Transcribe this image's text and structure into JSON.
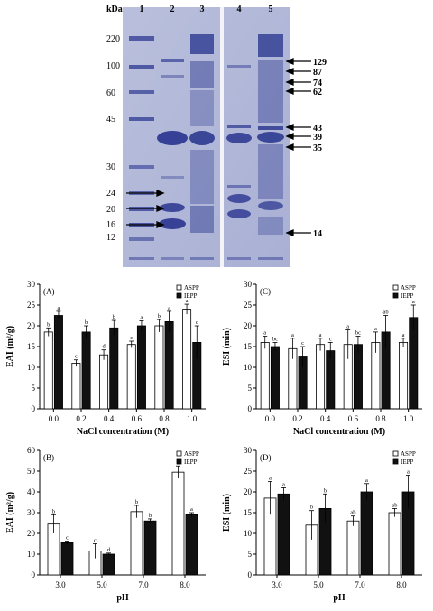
{
  "gel": {
    "unit_label": "kDa",
    "lanes": [
      "1",
      "2",
      "3",
      "4",
      "5"
    ],
    "marker_labels": [
      "220",
      "100",
      "60",
      "45",
      "30",
      "24",
      "20",
      "16",
      "12"
    ],
    "band_labels_right": [
      "129",
      "87",
      "74",
      "62",
      "43",
      "39",
      "35",
      "14"
    ]
  },
  "chart_data": [
    {
      "panel_label": "(A)",
      "type": "bar",
      "ylabel": "EAI (m²/g)",
      "xlabel": "NaCl concentration (M)",
      "categories": [
        "0.0",
        "0.2",
        "0.4",
        "0.6",
        "0.8",
        "1.0"
      ],
      "ylim": [
        0,
        30
      ],
      "yticks": [
        0,
        5,
        10,
        15,
        20,
        25,
        30
      ],
      "legend": [
        "ASPP",
        "IEPP"
      ],
      "legend_position": "top-right",
      "series": [
        {
          "name": "ASPP",
          "values": [
            18.5,
            11,
            13,
            15.5,
            20,
            24
          ],
          "errors": [
            1.0,
            0.8,
            1.2,
            0.8,
            1.5,
            1.2
          ],
          "letters": [
            "b",
            "e",
            "d",
            "c",
            "b",
            "a"
          ]
        },
        {
          "name": "IEPP",
          "values": [
            22.5,
            18.5,
            19.5,
            20,
            21,
            16
          ],
          "errors": [
            1.0,
            1.5,
            1.8,
            1.2,
            2.5,
            4.0
          ],
          "letters": [
            "a",
            "b",
            "b",
            "a",
            "a",
            "c"
          ]
        }
      ]
    },
    {
      "panel_label": "(C)",
      "type": "bar",
      "ylabel": "ESI (min)",
      "xlabel": "NaCl concentration (M)",
      "categories": [
        "0.0",
        "0.2",
        "0.4",
        "0.6",
        "0.8",
        "1.0"
      ],
      "ylim": [
        0,
        30
      ],
      "yticks": [
        0,
        5,
        10,
        15,
        20,
        25,
        30
      ],
      "legend": [
        "ASPP",
        "IEPP"
      ],
      "legend_position": "top-right",
      "series": [
        {
          "name": "ASPP",
          "values": [
            16,
            14.5,
            15.5,
            15.5,
            16,
            16
          ],
          "errors": [
            1.5,
            2.5,
            1.5,
            3.5,
            2.5,
            1.0
          ],
          "letters": [
            "a",
            "a",
            "a",
            "a",
            "a",
            "a"
          ]
        },
        {
          "name": "IEPP",
          "values": [
            15,
            12.5,
            14,
            15.5,
            18.5,
            22
          ],
          "errors": [
            1.0,
            2.5,
            2.0,
            2.0,
            4.0,
            3.0
          ],
          "letters": [
            "bc",
            "c",
            "c",
            "bc",
            "ab",
            "a"
          ]
        }
      ]
    },
    {
      "panel_label": "(B)",
      "type": "bar",
      "ylabel": "EAI (m²/g)",
      "xlabel": "pH",
      "categories": [
        "3.0",
        "5.0",
        "7.0",
        "8.0"
      ],
      "ylim": [
        0,
        60
      ],
      "yticks": [
        0,
        10,
        20,
        30,
        40,
        50,
        60
      ],
      "legend": [
        "ASPP",
        "IEPP"
      ],
      "legend_position": "top-right",
      "series": [
        {
          "name": "ASPP",
          "values": [
            24.5,
            11.5,
            30.5,
            49.5
          ],
          "errors": [
            4.5,
            3.5,
            3.0,
            3.0
          ],
          "letters": [
            "b",
            "c",
            "b",
            "a"
          ]
        },
        {
          "name": "IEPP",
          "values": [
            15.5,
            10,
            26,
            29
          ],
          "errors": [
            0.8,
            0.5,
            1.0,
            1.0
          ],
          "letters": [
            "c",
            "d",
            "b",
            "a"
          ]
        }
      ]
    },
    {
      "panel_label": "(D)",
      "type": "bar",
      "ylabel": "ESI (min)",
      "xlabel": "pH",
      "categories": [
        "3.0",
        "5.0",
        "7.0",
        "8.0"
      ],
      "ylim": [
        0,
        30
      ],
      "yticks": [
        0,
        5,
        10,
        15,
        20,
        25,
        30
      ],
      "legend": [
        "ASPP",
        "IEPP"
      ],
      "legend_position": "top-right",
      "series": [
        {
          "name": "ASPP",
          "values": [
            18.5,
            12,
            13,
            15
          ],
          "errors": [
            4.0,
            3.5,
            1.2,
            1.0
          ],
          "letters": [
            "a",
            "b",
            "ab",
            "ab"
          ]
        },
        {
          "name": "IEPP",
          "values": [
            19.5,
            16,
            20,
            20
          ],
          "errors": [
            1.5,
            3.5,
            2.0,
            4.0
          ],
          "letters": [
            "a",
            "b",
            "a",
            "a"
          ]
        }
      ]
    }
  ]
}
